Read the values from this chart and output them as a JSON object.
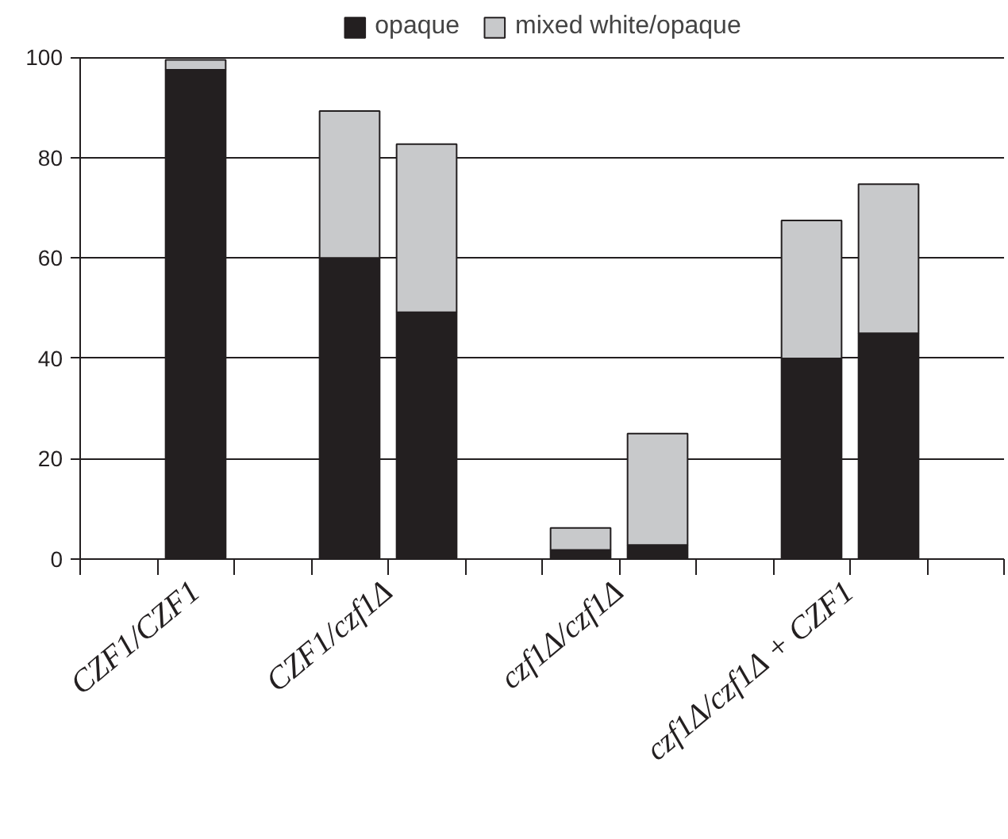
{
  "chart_data": {
    "type": "bar",
    "stacked": true,
    "categories": [
      null,
      "CZF1/CZF1",
      null,
      "CZF1/czf1Δ",
      null,
      null,
      "czf1Δ/czf1Δ",
      null,
      null,
      "czf1Δ/czf1Δ + CZF1",
      null,
      null
    ],
    "series": [
      {
        "name": "opaque",
        "color": "#231f20",
        "values": [
          null,
          97.5,
          null,
          60,
          49.2,
          null,
          1.8,
          2.8,
          null,
          40,
          45,
          null
        ]
      },
      {
        "name": "mixed white/opaque",
        "color": "#c8c9cb",
        "values": [
          null,
          2,
          null,
          29.3,
          33.5,
          null,
          4.4,
          22.2,
          null,
          27.5,
          29.7,
          null
        ]
      }
    ],
    "ylim": [
      0,
      100
    ],
    "yticks": [
      0,
      20,
      40,
      60,
      80,
      100
    ],
    "grid": "y",
    "legend": "top"
  }
}
